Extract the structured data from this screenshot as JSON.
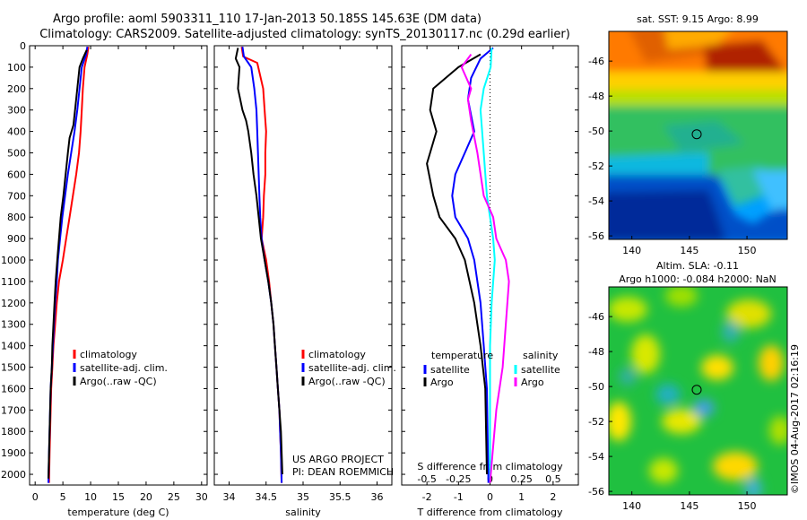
{
  "header": {
    "line1": "Argo profile: aoml 5903311_110 17-Jan-2013 50.185S 145.63E (DM data)",
    "line2": "Climatology: CARS2009. Satellite-adjusted climatology: synTS_20130117.nc (0.29d earlier)"
  },
  "colors": {
    "climatology": "#ff0000",
    "satellite": "#0000ff",
    "argo": "#000000",
    "sat_salinity": "#00ffff",
    "argo_salinity": "#ff00ff"
  },
  "chart_data": [
    {
      "type": "line",
      "xlabel": "temperature (deg C)",
      "xlim": [
        -1,
        31
      ],
      "xticks": [
        0,
        5,
        10,
        15,
        20,
        25,
        30
      ],
      "ylim": [
        0,
        2050
      ],
      "yticks": [
        0,
        100,
        200,
        300,
        400,
        500,
        600,
        700,
        800,
        900,
        1000,
        1100,
        1200,
        1300,
        1400,
        1500,
        1600,
        1700,
        1800,
        1900,
        2000
      ],
      "legend": [
        "climatology",
        "satellite-adj. clim.",
        "Argo(..raw -QC)"
      ],
      "series": [
        {
          "name": "climatology",
          "color": "#ff0000",
          "points": [
            [
              9.6,
              5
            ],
            [
              9.4,
              40
            ],
            [
              8.9,
              100
            ],
            [
              8.6,
              200
            ],
            [
              8.4,
              300
            ],
            [
              8.2,
              400
            ],
            [
              7.9,
              500
            ],
            [
              7.4,
              600
            ],
            [
              6.8,
              700
            ],
            [
              6.2,
              800
            ],
            [
              5.6,
              900
            ],
            [
              5.0,
              1000
            ],
            [
              4.3,
              1100
            ],
            [
              3.9,
              1200
            ],
            [
              3.6,
              1300
            ],
            [
              3.3,
              1400
            ],
            [
              3.1,
              1500
            ],
            [
              2.9,
              1600
            ],
            [
              2.8,
              1700
            ],
            [
              2.7,
              1800
            ],
            [
              2.6,
              1900
            ],
            [
              2.5,
              2040
            ]
          ]
        },
        {
          "name": "satellite-adj. clim.",
          "color": "#0000ff",
          "points": [
            [
              9.4,
              5
            ],
            [
              9.2,
              40
            ],
            [
              8.4,
              100
            ],
            [
              8.0,
              200
            ],
            [
              7.6,
              300
            ],
            [
              7.1,
              400
            ],
            [
              6.5,
              500
            ],
            [
              5.9,
              600
            ],
            [
              5.4,
              700
            ],
            [
              4.9,
              800
            ],
            [
              4.5,
              900
            ],
            [
              4.1,
              1000
            ],
            [
              3.9,
              1100
            ],
            [
              3.6,
              1200
            ],
            [
              3.4,
              1300
            ],
            [
              3.2,
              1400
            ],
            [
              3.0,
              1500
            ],
            [
              2.8,
              1600
            ],
            [
              2.7,
              1700
            ],
            [
              2.6,
              1800
            ],
            [
              2.5,
              1900
            ],
            [
              2.4,
              2040
            ]
          ]
        },
        {
          "name": "Argo(..raw -QC)",
          "color": "#000000",
          "points": [
            [
              9.3,
              20
            ],
            [
              8.6,
              60
            ],
            [
              8.0,
              100
            ],
            [
              7.6,
              200
            ],
            [
              7.2,
              300
            ],
            [
              6.9,
              370
            ],
            [
              6.2,
              430
            ],
            [
              5.9,
              500
            ],
            [
              5.5,
              600
            ],
            [
              5.1,
              700
            ],
            [
              4.6,
              800
            ],
            [
              4.3,
              900
            ],
            [
              4.0,
              1000
            ],
            [
              3.7,
              1100
            ],
            [
              3.5,
              1200
            ],
            [
              3.3,
              1300
            ],
            [
              3.1,
              1400
            ],
            [
              3.0,
              1500
            ],
            [
              2.8,
              1600
            ],
            [
              2.7,
              1700
            ],
            [
              2.6,
              1800
            ],
            [
              2.5,
              1900
            ],
            [
              2.4,
              2020
            ]
          ]
        }
      ]
    },
    {
      "type": "line",
      "xlabel": "salinity",
      "xlim": [
        33.8,
        36.2
      ],
      "xticks": [
        34,
        34.5,
        35,
        35.5,
        36
      ],
      "ylim": [
        0,
        2050
      ],
      "legend": [
        "climatology",
        "satellite-adj. clim.",
        "Argo(..raw -QC)"
      ],
      "annotation": [
        "US ARGO PROJECT",
        "PI: DEAN ROEMMICH"
      ],
      "series": [
        {
          "name": "climatology",
          "color": "#ff0000",
          "points": [
            [
              34.17,
              5
            ],
            [
              34.19,
              50
            ],
            [
              34.38,
              80
            ],
            [
              34.46,
              200
            ],
            [
              34.48,
              300
            ],
            [
              34.5,
              400
            ],
            [
              34.49,
              500
            ],
            [
              34.49,
              600
            ],
            [
              34.47,
              700
            ],
            [
              34.46,
              800
            ],
            [
              34.44,
              900
            ],
            [
              34.5,
              1000
            ],
            [
              34.54,
              1100
            ],
            [
              34.57,
              1200
            ],
            [
              34.6,
              1300
            ],
            [
              34.62,
              1400
            ],
            [
              34.64,
              1500
            ],
            [
              34.66,
              1600
            ],
            [
              34.68,
              1700
            ],
            [
              34.69,
              1800
            ],
            [
              34.7,
              1900
            ],
            [
              34.71,
              2040
            ]
          ]
        },
        {
          "name": "satellite-adj. clim.",
          "color": "#0000ff",
          "points": [
            [
              34.18,
              5
            ],
            [
              34.2,
              50
            ],
            [
              34.3,
              100
            ],
            [
              34.34,
              200
            ],
            [
              34.37,
              300
            ],
            [
              34.38,
              400
            ],
            [
              34.39,
              500
            ],
            [
              34.4,
              600
            ],
            [
              34.41,
              700
            ],
            [
              34.42,
              800
            ],
            [
              34.44,
              900
            ],
            [
              34.48,
              1000
            ],
            [
              34.53,
              1100
            ],
            [
              34.57,
              1200
            ],
            [
              34.6,
              1300
            ],
            [
              34.62,
              1400
            ],
            [
              34.64,
              1500
            ],
            [
              34.66,
              1600
            ],
            [
              34.68,
              1700
            ],
            [
              34.69,
              1800
            ],
            [
              34.7,
              1900
            ],
            [
              34.71,
              2040
            ]
          ]
        },
        {
          "name": "Argo(..raw -QC)",
          "color": "#000000",
          "points": [
            [
              34.12,
              10
            ],
            [
              34.09,
              60
            ],
            [
              34.14,
              100
            ],
            [
              34.12,
              200
            ],
            [
              34.18,
              300
            ],
            [
              34.23,
              350
            ],
            [
              34.26,
              400
            ],
            [
              34.3,
              500
            ],
            [
              34.33,
              600
            ],
            [
              34.37,
              700
            ],
            [
              34.4,
              800
            ],
            [
              34.43,
              900
            ],
            [
              34.48,
              1000
            ],
            [
              34.53,
              1100
            ],
            [
              34.57,
              1200
            ],
            [
              34.6,
              1300
            ],
            [
              34.62,
              1400
            ],
            [
              34.64,
              1500
            ],
            [
              34.66,
              1600
            ],
            [
              34.68,
              1700
            ],
            [
              34.7,
              1800
            ],
            [
              34.71,
              1900
            ],
            [
              34.72,
              2000
            ]
          ]
        }
      ]
    },
    {
      "type": "line",
      "xlabel": "T difference from climatology",
      "xlabel2": "S difference from climatology",
      "xlim": [
        -2.8,
        2.8
      ],
      "xticks": [
        -2,
        -1,
        0,
        1,
        2
      ],
      "xticks_secondary": [
        -0.5,
        -0.25,
        0,
        0.25,
        0.5
      ],
      "xticks_secondary_labels": [
        "-0.5",
        "-0.25",
        "0",
        "0.25",
        "0.5"
      ],
      "ylim": [
        0,
        2050
      ],
      "legend": {
        "temperature": [
          "satellite",
          "Argo"
        ],
        "salinity": [
          "satellite",
          "Argo"
        ],
        "titles": [
          "temperature",
          "salinity"
        ]
      },
      "series": [
        {
          "name": "temperature satellite",
          "color": "#0000ff",
          "points": [
            [
              0.1,
              10
            ],
            [
              -0.3,
              60
            ],
            [
              -0.6,
              150
            ],
            [
              -0.7,
              250
            ],
            [
              -0.5,
              400
            ],
            [
              -0.8,
              500
            ],
            [
              -1.1,
              600
            ],
            [
              -1.2,
              700
            ],
            [
              -1.1,
              800
            ],
            [
              -0.7,
              900
            ],
            [
              -0.5,
              1000
            ],
            [
              -0.3,
              1200
            ],
            [
              -0.2,
              1400
            ],
            [
              -0.1,
              1600
            ],
            [
              -0.05,
              2040
            ]
          ]
        },
        {
          "name": "temperature Argo",
          "color": "#000000",
          "points": [
            [
              -0.3,
              40
            ],
            [
              -1.0,
              100
            ],
            [
              -1.8,
              200
            ],
            [
              -1.9,
              300
            ],
            [
              -1.7,
              400
            ],
            [
              -2.0,
              550
            ],
            [
              -1.8,
              700
            ],
            [
              -1.6,
              800
            ],
            [
              -1.1,
              900
            ],
            [
              -0.8,
              1000
            ],
            [
              -0.5,
              1200
            ],
            [
              -0.3,
              1400
            ],
            [
              -0.15,
              1600
            ],
            [
              -0.1,
              2000
            ]
          ]
        },
        {
          "name": "salinity satellite",
          "color": "#00ffff",
          "points": [
            [
              0.05,
              10
            ],
            [
              0.02,
              100
            ],
            [
              -0.2,
              200
            ],
            [
              -0.3,
              300
            ],
            [
              -0.2,
              500
            ],
            [
              -0.1,
              700
            ],
            [
              0,
              800
            ],
            [
              0.1,
              900
            ],
            [
              0.15,
              1000
            ],
            [
              0.05,
              1200
            ],
            [
              0,
              1400
            ],
            [
              0,
              1600
            ],
            [
              0,
              2040
            ]
          ]
        },
        {
          "name": "salinity Argo",
          "color": "#ff00ff",
          "points": [
            [
              -0.6,
              40
            ],
            [
              -0.9,
              100
            ],
            [
              -0.6,
              200
            ],
            [
              -0.7,
              250
            ],
            [
              -0.6,
              350
            ],
            [
              -0.4,
              500
            ],
            [
              -0.2,
              700
            ],
            [
              0.1,
              800
            ],
            [
              0.2,
              900
            ],
            [
              0.5,
              1000
            ],
            [
              0.6,
              1100
            ],
            [
              0.5,
              1300
            ],
            [
              0.4,
              1500
            ],
            [
              0.2,
              1700
            ],
            [
              0,
              2040
            ]
          ]
        }
      ]
    },
    {
      "type": "heatmap",
      "title": "sat. SST: 9.15 Argo: 8.99",
      "xticks": [
        140,
        145,
        150
      ],
      "yticks": [
        -46,
        -48,
        -50,
        -52,
        -54,
        -56
      ],
      "xlim": [
        138,
        153.5
      ],
      "ylim": [
        -56.2,
        -44.3
      ],
      "marker": [
        145.63,
        -50.185
      ]
    },
    {
      "type": "heatmap",
      "title": "Altim. SLA: -0.11",
      "subtitle": "Argo h1000: -0.084 h2000: NaN",
      "xticks": [
        140,
        145,
        150
      ],
      "yticks": [
        -46,
        -48,
        -50,
        -52,
        -54,
        -56
      ],
      "xlim": [
        138,
        153.5
      ],
      "ylim": [
        -56.2,
        -44.3
      ],
      "marker": [
        145.63,
        -50.185
      ]
    }
  ],
  "watermark": "©IMOS 04-Aug-2017 02:16:19"
}
